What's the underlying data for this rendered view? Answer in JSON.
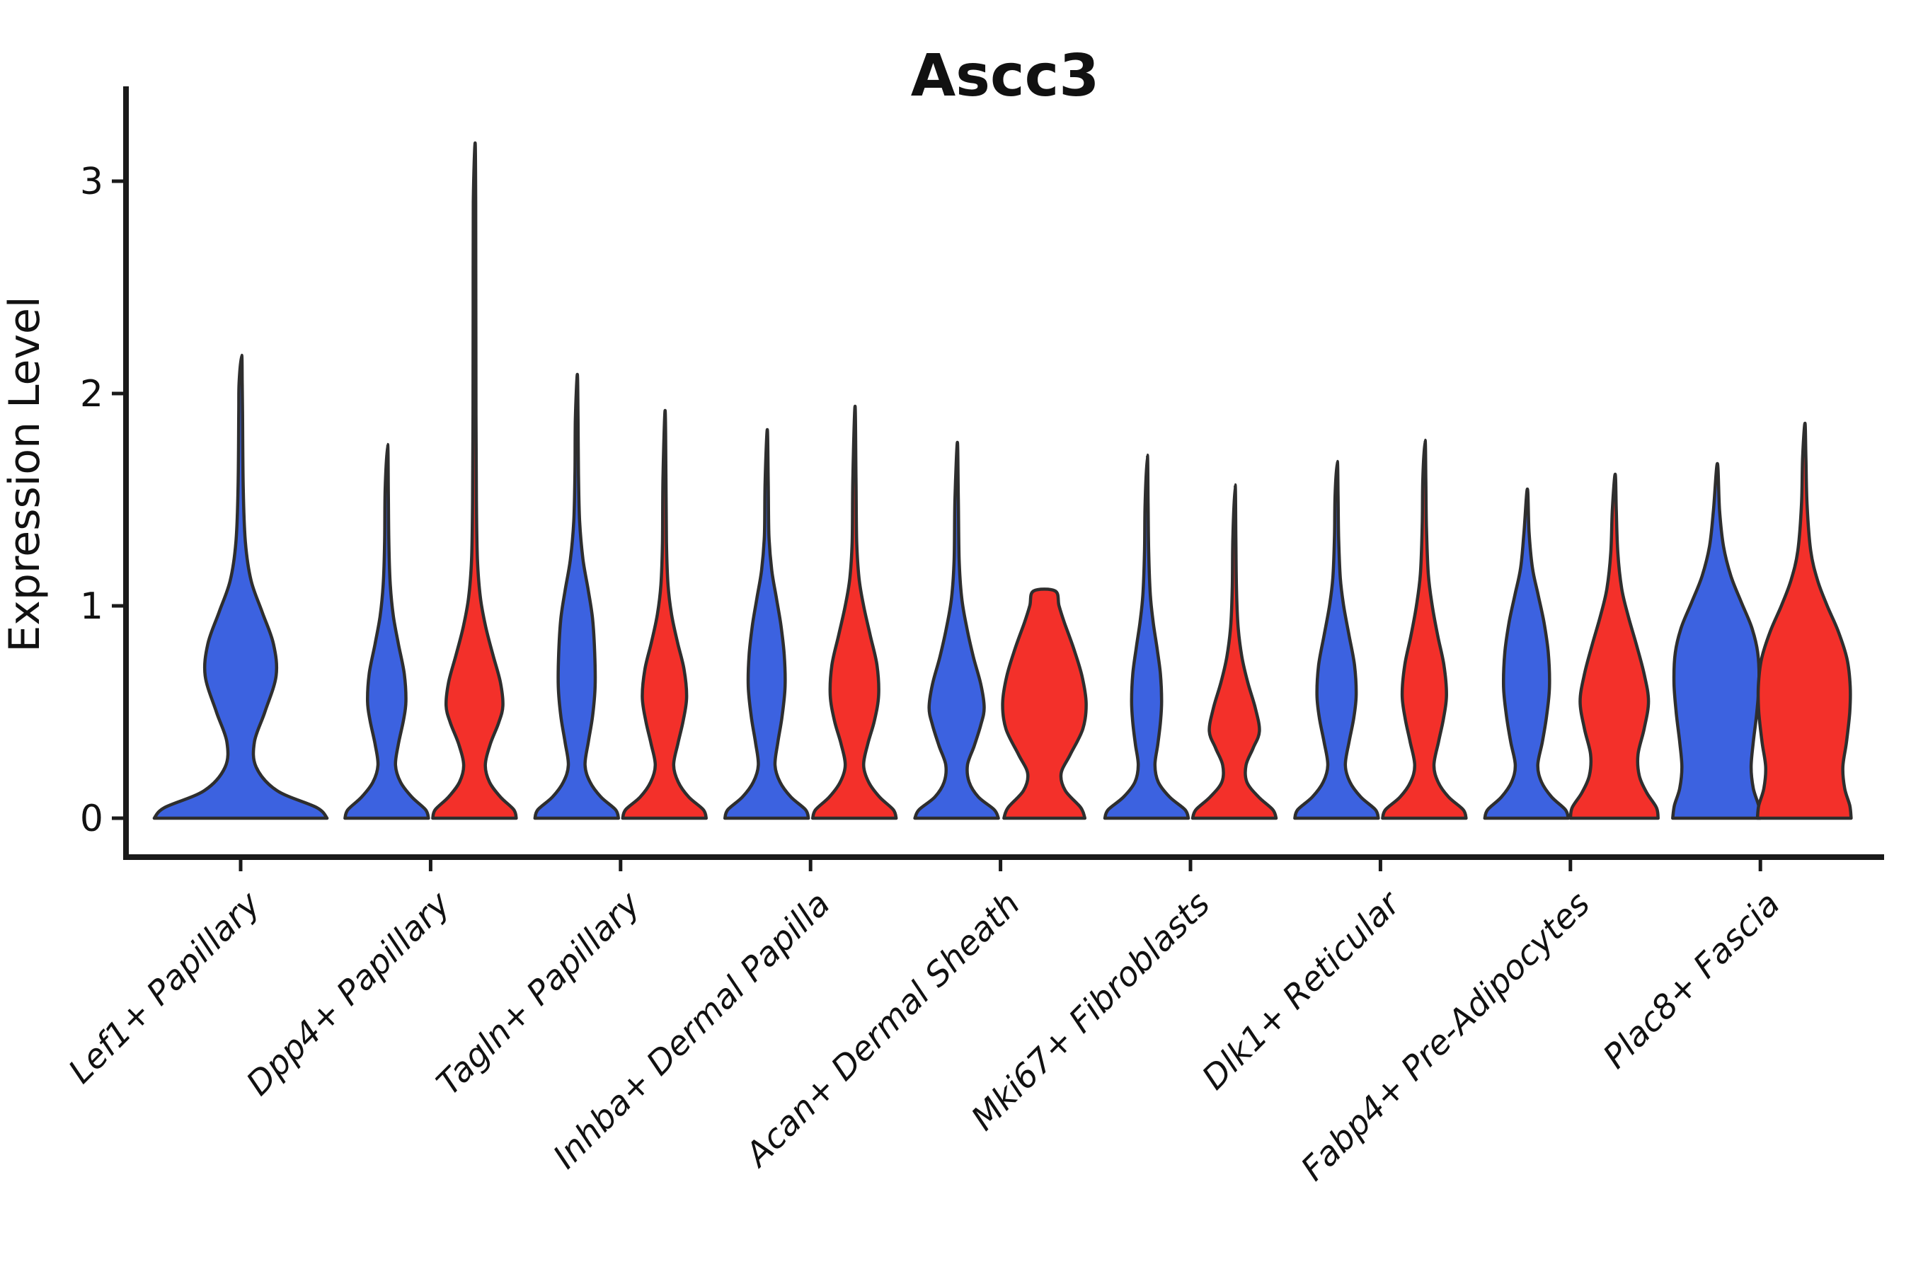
{
  "figure": {
    "title": "Ascc3"
  },
  "y_axis": {
    "label": "Expression Level",
    "tick_labels": [
      "0",
      "1",
      "2",
      "3"
    ],
    "tick_values": [
      0,
      1,
      2,
      3
    ]
  },
  "x_axis": {
    "tick_labels": [
      "Lef1+ Papillary",
      "Dpp4+ Papillary",
      "Tagln+ Papillary",
      "Inhba+ Dermal Papilla",
      "Acan+ Dermal Sheath",
      "Mki67+ Fibroblasts",
      "Dlk1+ Reticular",
      "Fabp4+ Pre-Adipocytes",
      "Plac8+ Fascia"
    ]
  },
  "colors": {
    "violin_blue": "#3c62e0",
    "violin_red": "#f3302a",
    "outline": "#2e2e2e",
    "axis": "#1a1a1a",
    "background": "#ffffff"
  },
  "chart_data": {
    "type": "violin",
    "title": "Ascc3",
    "xlabel": "",
    "ylabel": "Expression Level",
    "yticks": [
      0,
      1,
      2,
      3
    ],
    "ylim": [
      -0.05,
      3.45
    ],
    "legend_position": "none",
    "grid": false,
    "split_colors": [
      "#3c62e0",
      "#f3302a"
    ],
    "categories": [
      "Lef1+ Papillary",
      "Dpp4+ Papillary",
      "Tagln+ Papillary",
      "Inhba+ Dermal Papilla",
      "Acan+ Dermal Sheath",
      "Mki67+ Fibroblasts",
      "Dlk1+ Reticular",
      "Fabp4+ Pre-Adipocytes",
      "Plac8+ Fascia"
    ],
    "violins": [
      {
        "category": "Lef1+ Papillary",
        "split": "blue",
        "slot": "full",
        "hw": 2.07,
        "max_expression": 2.18,
        "flat_top": false,
        "profile": [
          [
            0,
            1.0
          ],
          [
            0.05,
            0.88
          ],
          [
            0.13,
            0.42
          ],
          [
            0.24,
            0.18
          ],
          [
            0.36,
            0.16
          ],
          [
            0.5,
            0.28
          ],
          [
            0.67,
            0.41
          ],
          [
            0.82,
            0.38
          ],
          [
            0.97,
            0.25
          ],
          [
            1.12,
            0.12
          ],
          [
            1.3,
            0.055
          ],
          [
            1.55,
            0.03
          ],
          [
            1.9,
            0.022
          ],
          [
            2.05,
            0.018
          ],
          [
            2.18,
            0.012
          ]
        ]
      },
      {
        "category": "Dpp4+ Papillary",
        "split": "blue",
        "slot": "left",
        "hw": 1.0,
        "max_expression": 1.76,
        "flat_top": false,
        "profile": [
          [
            0,
            1.0
          ],
          [
            0.04,
            0.93
          ],
          [
            0.1,
            0.6
          ],
          [
            0.17,
            0.33
          ],
          [
            0.25,
            0.21
          ],
          [
            0.35,
            0.28
          ],
          [
            0.46,
            0.4
          ],
          [
            0.55,
            0.46
          ],
          [
            0.68,
            0.42
          ],
          [
            0.82,
            0.28
          ],
          [
            0.95,
            0.16
          ],
          [
            1.1,
            0.085
          ],
          [
            1.3,
            0.05
          ],
          [
            1.55,
            0.038
          ],
          [
            1.76,
            0.022
          ]
        ]
      },
      {
        "category": "Dpp4+ Papillary",
        "split": "red",
        "slot": "right",
        "hw": 1.0,
        "max_expression": 3.18,
        "flat_top": false,
        "profile": [
          [
            0,
            1.0
          ],
          [
            0.04,
            0.94
          ],
          [
            0.1,
            0.62
          ],
          [
            0.17,
            0.36
          ],
          [
            0.25,
            0.26
          ],
          [
            0.35,
            0.38
          ],
          [
            0.45,
            0.58
          ],
          [
            0.53,
            0.68
          ],
          [
            0.64,
            0.62
          ],
          [
            0.77,
            0.44
          ],
          [
            0.9,
            0.27
          ],
          [
            1.04,
            0.14
          ],
          [
            1.22,
            0.07
          ],
          [
            1.5,
            0.045
          ],
          [
            1.9,
            0.036
          ],
          [
            2.4,
            0.032
          ],
          [
            2.9,
            0.028
          ],
          [
            3.18,
            0.015
          ]
        ]
      },
      {
        "category": "Tagln+ Papillary",
        "split": "blue",
        "slot": "left",
        "hw": 1.0,
        "max_expression": 2.09,
        "flat_top": false,
        "profile": [
          [
            0,
            1.0
          ],
          [
            0.04,
            0.93
          ],
          [
            0.1,
            0.58
          ],
          [
            0.17,
            0.32
          ],
          [
            0.25,
            0.2
          ],
          [
            0.36,
            0.28
          ],
          [
            0.48,
            0.38
          ],
          [
            0.62,
            0.44
          ],
          [
            0.78,
            0.43
          ],
          [
            0.94,
            0.38
          ],
          [
            1.07,
            0.28
          ],
          [
            1.22,
            0.15
          ],
          [
            1.4,
            0.07
          ],
          [
            1.62,
            0.042
          ],
          [
            1.88,
            0.032
          ],
          [
            2.09,
            0.015
          ]
        ]
      },
      {
        "category": "Tagln+ Papillary",
        "split": "red",
        "slot": "right",
        "hw": 1.0,
        "max_expression": 1.92,
        "flat_top": false,
        "profile": [
          [
            0,
            1.0
          ],
          [
            0.04,
            0.93
          ],
          [
            0.1,
            0.58
          ],
          [
            0.17,
            0.33
          ],
          [
            0.25,
            0.22
          ],
          [
            0.35,
            0.32
          ],
          [
            0.46,
            0.45
          ],
          [
            0.57,
            0.53
          ],
          [
            0.7,
            0.47
          ],
          [
            0.83,
            0.31
          ],
          [
            0.96,
            0.17
          ],
          [
            1.1,
            0.085
          ],
          [
            1.3,
            0.048
          ],
          [
            1.6,
            0.036
          ],
          [
            1.92,
            0.015
          ]
        ]
      },
      {
        "category": "Inhba+ Dermal Papilla",
        "split": "blue",
        "slot": "left",
        "hw": 1.0,
        "max_expression": 1.83,
        "flat_top": false,
        "profile": [
          [
            0,
            1.0
          ],
          [
            0.04,
            0.93
          ],
          [
            0.1,
            0.58
          ],
          [
            0.17,
            0.32
          ],
          [
            0.25,
            0.2
          ],
          [
            0.36,
            0.27
          ],
          [
            0.48,
            0.37
          ],
          [
            0.62,
            0.44
          ],
          [
            0.77,
            0.42
          ],
          [
            0.91,
            0.34
          ],
          [
            1.04,
            0.23
          ],
          [
            1.17,
            0.12
          ],
          [
            1.33,
            0.055
          ],
          [
            1.58,
            0.038
          ],
          [
            1.83,
            0.015
          ]
        ]
      },
      {
        "category": "Inhba+ Dermal Papilla",
        "split": "red",
        "slot": "right",
        "hw": 1.0,
        "max_expression": 1.94,
        "flat_top": false,
        "profile": [
          [
            0,
            1.0
          ],
          [
            0.04,
            0.93
          ],
          [
            0.1,
            0.6
          ],
          [
            0.17,
            0.34
          ],
          [
            0.25,
            0.22
          ],
          [
            0.35,
            0.32
          ],
          [
            0.46,
            0.48
          ],
          [
            0.58,
            0.58
          ],
          [
            0.72,
            0.54
          ],
          [
            0.86,
            0.38
          ],
          [
            1.0,
            0.22
          ],
          [
            1.13,
            0.11
          ],
          [
            1.3,
            0.055
          ],
          [
            1.6,
            0.038
          ],
          [
            1.94,
            0.015
          ]
        ]
      },
      {
        "category": "Acan+ Dermal Sheath",
        "split": "blue",
        "slot": "left",
        "hw": 1.0,
        "max_expression": 1.77,
        "flat_top": false,
        "profile": [
          [
            0,
            1.0
          ],
          [
            0.04,
            0.9
          ],
          [
            0.1,
            0.52
          ],
          [
            0.17,
            0.3
          ],
          [
            0.25,
            0.26
          ],
          [
            0.34,
            0.42
          ],
          [
            0.44,
            0.58
          ],
          [
            0.52,
            0.66
          ],
          [
            0.63,
            0.58
          ],
          [
            0.76,
            0.4
          ],
          [
            0.9,
            0.24
          ],
          [
            1.04,
            0.12
          ],
          [
            1.22,
            0.06
          ],
          [
            1.5,
            0.04
          ],
          [
            1.77,
            0.018
          ]
        ]
      },
      {
        "category": "Acan+ Dermal Sheath",
        "split": "red",
        "slot": "right",
        "hw": 1.0,
        "max_expression": 1.07,
        "flat_top": true,
        "profile": [
          [
            0,
            0.97
          ],
          [
            0.05,
            0.87
          ],
          [
            0.13,
            0.5
          ],
          [
            0.21,
            0.4
          ],
          [
            0.3,
            0.62
          ],
          [
            0.42,
            0.92
          ],
          [
            0.54,
            1.0
          ],
          [
            0.67,
            0.9
          ],
          [
            0.8,
            0.7
          ],
          [
            0.92,
            0.48
          ],
          [
            1.0,
            0.35
          ],
          [
            1.07,
            0.26
          ]
        ]
      },
      {
        "category": "Mki67+ Fibroblasts",
        "split": "blue",
        "slot": "left",
        "hw": 1.0,
        "max_expression": 1.71,
        "flat_top": false,
        "profile": [
          [
            0,
            1.0
          ],
          [
            0.04,
            0.92
          ],
          [
            0.1,
            0.55
          ],
          [
            0.17,
            0.28
          ],
          [
            0.25,
            0.2
          ],
          [
            0.35,
            0.27
          ],
          [
            0.45,
            0.33
          ],
          [
            0.55,
            0.36
          ],
          [
            0.68,
            0.33
          ],
          [
            0.8,
            0.25
          ],
          [
            0.92,
            0.16
          ],
          [
            1.05,
            0.09
          ],
          [
            1.25,
            0.05
          ],
          [
            1.48,
            0.036
          ],
          [
            1.71,
            0.018
          ]
        ]
      },
      {
        "category": "Mki67+ Fibroblasts",
        "split": "red",
        "slot": "right",
        "hw": 1.0,
        "max_expression": 1.57,
        "flat_top": false,
        "profile": [
          [
            0,
            1.0
          ],
          [
            0.04,
            0.92
          ],
          [
            0.1,
            0.58
          ],
          [
            0.17,
            0.3
          ],
          [
            0.25,
            0.28
          ],
          [
            0.33,
            0.45
          ],
          [
            0.41,
            0.6
          ],
          [
            0.52,
            0.5
          ],
          [
            0.64,
            0.32
          ],
          [
            0.76,
            0.18
          ],
          [
            0.9,
            0.09
          ],
          [
            1.08,
            0.05
          ],
          [
            1.32,
            0.036
          ],
          [
            1.57,
            0.018
          ]
        ]
      },
      {
        "category": "Dlk1+ Reticular",
        "split": "blue",
        "slot": "left",
        "hw": 1.0,
        "max_expression": 1.68,
        "flat_top": false,
        "profile": [
          [
            0,
            1.0
          ],
          [
            0.04,
            0.93
          ],
          [
            0.1,
            0.58
          ],
          [
            0.17,
            0.32
          ],
          [
            0.25,
            0.21
          ],
          [
            0.36,
            0.3
          ],
          [
            0.47,
            0.41
          ],
          [
            0.58,
            0.47
          ],
          [
            0.72,
            0.43
          ],
          [
            0.86,
            0.3
          ],
          [
            1.0,
            0.17
          ],
          [
            1.13,
            0.09
          ],
          [
            1.32,
            0.05
          ],
          [
            1.52,
            0.036
          ],
          [
            1.68,
            0.018
          ]
        ]
      },
      {
        "category": "Dlk1+ Reticular",
        "split": "red",
        "slot": "right",
        "hw": 1.0,
        "max_expression": 1.78,
        "flat_top": false,
        "profile": [
          [
            0,
            1.0
          ],
          [
            0.04,
            0.93
          ],
          [
            0.1,
            0.58
          ],
          [
            0.17,
            0.33
          ],
          [
            0.25,
            0.23
          ],
          [
            0.36,
            0.34
          ],
          [
            0.47,
            0.46
          ],
          [
            0.58,
            0.53
          ],
          [
            0.72,
            0.47
          ],
          [
            0.86,
            0.32
          ],
          [
            1.0,
            0.19
          ],
          [
            1.15,
            0.095
          ],
          [
            1.38,
            0.05
          ],
          [
            1.6,
            0.036
          ],
          [
            1.78,
            0.018
          ]
        ]
      },
      {
        "category": "Fabp4+ Pre-Adipocytes",
        "split": "blue",
        "slot": "left",
        "hw": 1.0,
        "max_expression": 1.55,
        "flat_top": false,
        "profile": [
          [
            0,
            1.0
          ],
          [
            0.04,
            0.93
          ],
          [
            0.1,
            0.6
          ],
          [
            0.17,
            0.36
          ],
          [
            0.25,
            0.27
          ],
          [
            0.36,
            0.38
          ],
          [
            0.48,
            0.48
          ],
          [
            0.62,
            0.55
          ],
          [
            0.78,
            0.52
          ],
          [
            0.92,
            0.42
          ],
          [
            1.05,
            0.28
          ],
          [
            1.18,
            0.14
          ],
          [
            1.35,
            0.06
          ],
          [
            1.55,
            0.02
          ]
        ]
      },
      {
        "category": "Fabp4+ Pre-Adipocytes",
        "split": "red",
        "slot": "right",
        "hw": 1.05,
        "max_expression": 1.62,
        "flat_top": false,
        "profile": [
          [
            0,
            1.0
          ],
          [
            0.05,
            0.96
          ],
          [
            0.12,
            0.74
          ],
          [
            0.2,
            0.57
          ],
          [
            0.3,
            0.54
          ],
          [
            0.42,
            0.68
          ],
          [
            0.55,
            0.78
          ],
          [
            0.68,
            0.68
          ],
          [
            0.82,
            0.5
          ],
          [
            0.95,
            0.32
          ],
          [
            1.08,
            0.17
          ],
          [
            1.25,
            0.08
          ],
          [
            1.45,
            0.045
          ],
          [
            1.62,
            0.02
          ]
        ]
      },
      {
        "category": "Plac8+ Fascia",
        "split": "blue",
        "slot": "left",
        "hw": 1.05,
        "max_expression": 1.67,
        "flat_top": false,
        "profile": [
          [
            0,
            1.0
          ],
          [
            0.06,
            0.96
          ],
          [
            0.14,
            0.84
          ],
          [
            0.24,
            0.79
          ],
          [
            0.36,
            0.84
          ],
          [
            0.5,
            0.92
          ],
          [
            0.64,
            0.97
          ],
          [
            0.78,
            0.94
          ],
          [
            0.9,
            0.8
          ],
          [
            1.02,
            0.56
          ],
          [
            1.14,
            0.33
          ],
          [
            1.28,
            0.16
          ],
          [
            1.45,
            0.07
          ],
          [
            1.67,
            0.02
          ]
        ]
      },
      {
        "category": "Plac8+ Fascia",
        "split": "red",
        "slot": "right",
        "hw": 1.1,
        "max_expression": 1.86,
        "flat_top": false,
        "profile": [
          [
            0,
            1.02
          ],
          [
            0.06,
            0.99
          ],
          [
            0.14,
            0.88
          ],
          [
            0.24,
            0.84
          ],
          [
            0.36,
            0.92
          ],
          [
            0.5,
            0.99
          ],
          [
            0.62,
            1.0
          ],
          [
            0.75,
            0.93
          ],
          [
            0.88,
            0.74
          ],
          [
            1.0,
            0.5
          ],
          [
            1.12,
            0.29
          ],
          [
            1.26,
            0.14
          ],
          [
            1.48,
            0.06
          ],
          [
            1.7,
            0.035
          ],
          [
            1.86,
            0.015
          ]
        ]
      }
    ]
  }
}
